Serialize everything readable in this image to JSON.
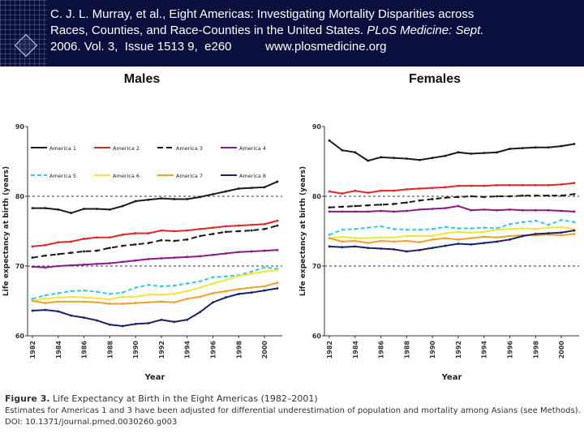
{
  "header": {
    "citation_line1": "C. J. L. Murray,  et al.,  Eight Americas: Investigating Mortality Disparities across",
    "citation_line2_a": "Races, Counties, and Race-Counties in the United States. ",
    "citation_line2_b": "PLoS Medicine: Sept.",
    "citation_line3": "2006. Vol. 3,  Issue 1513 9,  e260          www.plosmedicine.org"
  },
  "caption": {
    "figure_label": "Figure 3.",
    "figure_title": " Life Expectancy at Birth in the Eight Americas (1982–2001)",
    "note": "Estimates for Americas 1 and 3 have been adjusted for differential underestimation of population and mortality among Asians (see Methods).",
    "doi": "DOI: 10.1371/journal.pmed.0030260.g003"
  },
  "colors": {
    "America 1": "#1a1a1a",
    "America 2": "#e02828",
    "America 3": "#1a1a1a",
    "America 4": "#8b1a8b",
    "America 5": "#3cc8e8",
    "America 6": "#f2e63c",
    "America 7": "#f0a030",
    "America 8": "#1a1f6e"
  },
  "chart_data": [
    {
      "type": "line",
      "title": "Males",
      "xlabel": "Year",
      "ylabel": "Life expectancy at birth (years)",
      "xlim": [
        1982,
        2001
      ],
      "ylim": [
        60,
        90
      ],
      "x_ticks": [
        "1982",
        "1984",
        "1986",
        "1988",
        "1990",
        "1992",
        "1994",
        "1996",
        "1998",
        "2000"
      ],
      "y_ticks": [
        "60",
        "70",
        "80",
        "90"
      ],
      "grid": "dashed lines at 70 and 80",
      "legend": "top-left, two rows",
      "x": [
        1982,
        1983,
        1984,
        1985,
        1986,
        1987,
        1988,
        1989,
        1990,
        1991,
        1992,
        1993,
        1994,
        1995,
        1996,
        1997,
        1998,
        1999,
        2000,
        2001
      ],
      "series": [
        {
          "name": "America 1",
          "values": [
            78.3,
            78.3,
            78.1,
            77.6,
            78.2,
            78.2,
            78.1,
            78.6,
            79.3,
            79.5,
            79.7,
            79.6,
            79.6,
            79.9,
            80.3,
            80.7,
            81.1,
            81.2,
            81.3,
            82.1
          ]
        },
        {
          "name": "America 2",
          "values": [
            72.8,
            73.0,
            73.4,
            73.5,
            73.9,
            74.1,
            74.1,
            74.5,
            74.7,
            74.7,
            75.1,
            75.0,
            75.1,
            75.3,
            75.5,
            75.7,
            75.8,
            75.9,
            76.0,
            76.5
          ]
        },
        {
          "name": "America 3",
          "values": [
            71.2,
            71.5,
            71.7,
            71.9,
            72.1,
            72.2,
            72.6,
            72.9,
            73.1,
            73.3,
            73.7,
            73.6,
            73.8,
            74.3,
            74.6,
            74.9,
            75.0,
            75.1,
            75.3,
            75.8
          ]
        },
        {
          "name": "America 4",
          "values": [
            69.9,
            69.8,
            70.0,
            70.1,
            70.2,
            70.3,
            70.4,
            70.6,
            70.8,
            71.0,
            71.1,
            71.2,
            71.3,
            71.4,
            71.6,
            71.8,
            72.0,
            72.1,
            72.2,
            72.3
          ]
        },
        {
          "name": "America 5",
          "values": [
            65.3,
            65.8,
            66.1,
            66.4,
            66.5,
            66.3,
            66.0,
            66.2,
            66.9,
            67.3,
            67.1,
            67.2,
            67.5,
            67.8,
            68.4,
            68.5,
            68.7,
            69.2,
            69.8,
            69.6
          ]
        },
        {
          "name": "America 6",
          "values": [
            65.0,
            65.3,
            65.5,
            65.6,
            65.5,
            65.4,
            65.2,
            65.6,
            65.6,
            65.9,
            65.9,
            66.0,
            66.4,
            66.9,
            67.5,
            68.0,
            68.6,
            68.9,
            69.2,
            69.4
          ]
        },
        {
          "name": "America 7",
          "values": [
            65.0,
            64.7,
            64.9,
            64.9,
            64.9,
            64.8,
            64.6,
            64.6,
            64.7,
            64.8,
            64.9,
            64.8,
            65.3,
            65.6,
            66.1,
            66.4,
            66.7,
            66.9,
            67.1,
            67.6
          ]
        },
        {
          "name": "America 8",
          "values": [
            63.6,
            63.7,
            63.5,
            62.9,
            62.6,
            62.2,
            61.6,
            61.4,
            61.7,
            61.8,
            62.3,
            62.0,
            62.3,
            63.4,
            64.8,
            65.5,
            66.0,
            66.2,
            66.5,
            66.8
          ]
        }
      ]
    },
    {
      "type": "line",
      "title": "Females",
      "xlabel": "Year",
      "ylabel": "Life expectancy at birth (years)",
      "xlim": [
        1982,
        2001
      ],
      "ylim": [
        60,
        90
      ],
      "x_ticks": [
        "1982",
        "1984",
        "1986",
        "1988",
        "1990",
        "1992",
        "1994",
        "1996",
        "1998",
        "2000"
      ],
      "y_ticks": [
        "60",
        "70",
        "80",
        "90"
      ],
      "grid": "dashed lines at 70 and 80",
      "x": [
        1982,
        1983,
        1984,
        1985,
        1986,
        1987,
        1988,
        1989,
        1990,
        1991,
        1992,
        1993,
        1994,
        1995,
        1996,
        1997,
        1998,
        1999,
        2000,
        2001
      ],
      "series": [
        {
          "name": "America 1",
          "values": [
            88.0,
            86.6,
            86.3,
            85.1,
            85.6,
            85.5,
            85.4,
            85.2,
            85.5,
            85.8,
            86.3,
            86.1,
            86.2,
            86.3,
            86.8,
            86.9,
            87.0,
            87.0,
            87.2,
            87.5
          ]
        },
        {
          "name": "America 2",
          "values": [
            80.7,
            80.4,
            80.8,
            80.5,
            80.8,
            80.8,
            81.0,
            81.1,
            81.2,
            81.3,
            81.5,
            81.5,
            81.5,
            81.6,
            81.6,
            81.6,
            81.6,
            81.6,
            81.7,
            81.9
          ]
        },
        {
          "name": "America 3",
          "values": [
            78.4,
            78.5,
            78.6,
            78.7,
            78.8,
            78.9,
            79.1,
            79.4,
            79.6,
            79.8,
            79.9,
            80.0,
            79.9,
            80.0,
            80.0,
            80.1,
            80.1,
            80.1,
            80.1,
            80.3
          ]
        },
        {
          "name": "America 4",
          "values": [
            77.8,
            77.8,
            77.8,
            77.8,
            77.9,
            77.8,
            77.9,
            78.1,
            78.2,
            78.3,
            78.6,
            78.0,
            78.1,
            78.0,
            78.1,
            78.0,
            78.0,
            78.0,
            77.9,
            77.8
          ]
        },
        {
          "name": "America 5",
          "values": [
            74.5,
            75.2,
            75.3,
            75.5,
            75.7,
            75.3,
            75.2,
            75.2,
            75.3,
            75.6,
            75.4,
            75.4,
            75.5,
            75.4,
            76.0,
            76.3,
            76.5,
            75.9,
            76.6,
            76.3
          ]
        },
        {
          "name": "America 6",
          "values": [
            74.0,
            74.2,
            74.0,
            74.0,
            74.1,
            74.1,
            74.3,
            74.3,
            74.3,
            74.7,
            74.9,
            74.8,
            74.9,
            75.2,
            75.3,
            75.4,
            75.3,
            75.5,
            75.6,
            75.3
          ]
        },
        {
          "name": "America 7",
          "values": [
            74.0,
            73.5,
            73.6,
            73.3,
            73.6,
            73.5,
            73.6,
            73.4,
            73.8,
            74.0,
            73.8,
            74.0,
            74.2,
            74.1,
            74.3,
            74.4,
            74.4,
            74.5,
            74.4,
            74.6
          ]
        },
        {
          "name": "America 8",
          "values": [
            72.8,
            72.7,
            72.8,
            72.6,
            72.5,
            72.4,
            72.1,
            72.3,
            72.6,
            72.9,
            73.2,
            73.1,
            73.3,
            73.5,
            73.8,
            74.3,
            74.6,
            74.7,
            74.8,
            75.1
          ]
        }
      ]
    }
  ]
}
